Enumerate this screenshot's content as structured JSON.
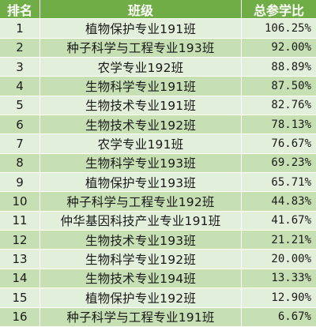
{
  "header": {
    "rank": "排名",
    "class": "班级",
    "ratio": "总参学比"
  },
  "rows": [
    {
      "rank": "1",
      "class": "植物保护专业191班",
      "ratio": "106.25%"
    },
    {
      "rank": "2",
      "class": "种子科学与工程专业193班",
      "ratio": "92.00%"
    },
    {
      "rank": "3",
      "class": "农学专业192班",
      "ratio": "88.89%"
    },
    {
      "rank": "4",
      "class": "生物科学专业191班",
      "ratio": "87.50%"
    },
    {
      "rank": "5",
      "class": "生物技术专业191班",
      "ratio": "82.76%"
    },
    {
      "rank": "6",
      "class": "生物技术专业192班",
      "ratio": "78.13%"
    },
    {
      "rank": "7",
      "class": "农学专业191班",
      "ratio": "76.67%"
    },
    {
      "rank": "8",
      "class": "生物科学专业193班",
      "ratio": "69.23%"
    },
    {
      "rank": "9",
      "class": "植物保护专业193班",
      "ratio": "65.71%"
    },
    {
      "rank": "10",
      "class": "种子科学与工程专业192班",
      "ratio": "44.83%"
    },
    {
      "rank": "11",
      "class": "仲华基因科技产业专业191班",
      "ratio": "41.67%"
    },
    {
      "rank": "12",
      "class": "生物技术专业193班",
      "ratio": "21.21%"
    },
    {
      "rank": "13",
      "class": "生物科学专业192班",
      "ratio": "20.00%"
    },
    {
      "rank": "14",
      "class": "生物技术专业194班",
      "ratio": "13.33%"
    },
    {
      "rank": "15",
      "class": "植物保护专业192班",
      "ratio": "12.90%"
    },
    {
      "rank": "16",
      "class": "种子科学与工程专业191班",
      "ratio": "6.67%"
    }
  ],
  "colors": {
    "header_bg": "#70ad47",
    "row_light": "#e2efda",
    "row_dark": "#c6e0b4"
  }
}
